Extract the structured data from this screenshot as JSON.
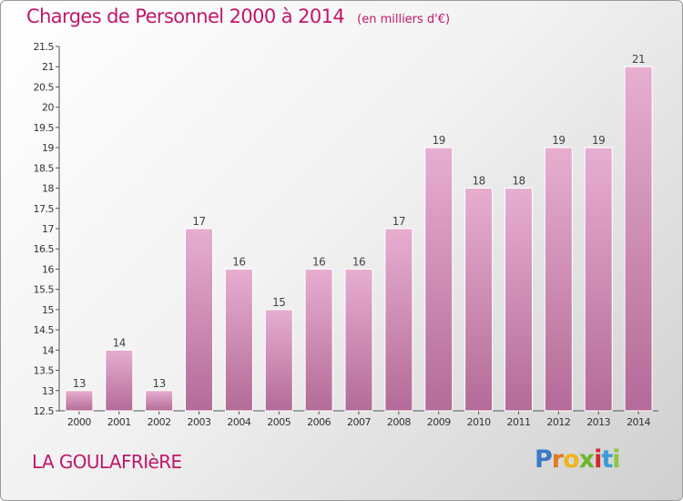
{
  "header": {
    "title": "Charges de Personnel 2000 à 2014",
    "subtitle": "(en milliers d'€)"
  },
  "footer": {
    "commune": "LA GOULAFRIèRE",
    "logo": {
      "letters": [
        "P",
        "r",
        "o",
        "x",
        "i",
        "t",
        "i"
      ],
      "colors": [
        "#3a78c8",
        "#e07a1f",
        "#f0b51a",
        "#6fb52c",
        "#d8262d",
        "#3a9bd8",
        "#8dc63f"
      ]
    }
  },
  "chart_data": {
    "type": "bar",
    "title": "Charges de Personnel 2000 à 2014",
    "categories": [
      "2000",
      "2001",
      "2002",
      "2003",
      "2004",
      "2005",
      "2006",
      "2007",
      "2008",
      "2009",
      "2010",
      "2011",
      "2012",
      "2013",
      "2014"
    ],
    "values": [
      13,
      14,
      13,
      17,
      16,
      15,
      16,
      16,
      17,
      19,
      18,
      18,
      19,
      19,
      21
    ],
    "data_labels": [
      "13",
      "14",
      "13",
      "17",
      "16",
      "15",
      "16",
      "16",
      "17",
      "19",
      "18",
      "18",
      "19",
      "19",
      "21"
    ],
    "ylim": [
      12.5,
      21.5
    ],
    "yticks": [
      12.5,
      13,
      13.5,
      14,
      14.5,
      15,
      15.5,
      16,
      16.5,
      17,
      17.5,
      18,
      18.5,
      19,
      19.5,
      20,
      20.5,
      21,
      21.5
    ],
    "ytick_labels": [
      "12.5",
      "13",
      "13.5",
      "14",
      "14.5",
      "15",
      "15.5",
      "16",
      "16.5",
      "17",
      "17.5",
      "18",
      "18.5",
      "19",
      "19.5",
      "20",
      "20.5",
      "21",
      "21.5"
    ],
    "grid": false,
    "colors": {
      "bar_top": "#e7aed0",
      "bar_bottom": "#b36b97",
      "bar_stroke": "#ffffff"
    }
  }
}
